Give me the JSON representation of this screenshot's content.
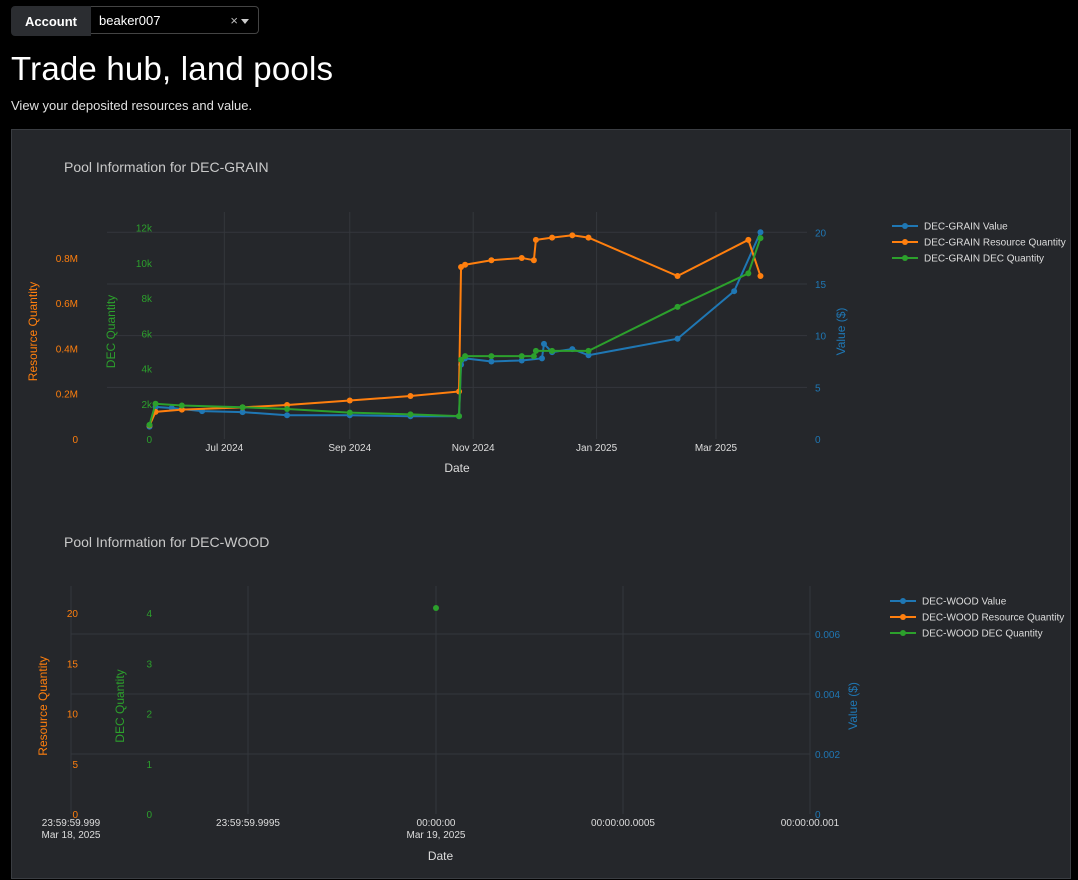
{
  "account": {
    "label": "Account",
    "value": "beaker007",
    "clear": "×"
  },
  "page": {
    "title": "Trade hub, land pools",
    "subtitle": "View your deposited resources and value."
  },
  "colors": {
    "value": "#1f77b4",
    "resource": "#ff7f0e",
    "dec": "#2ca02c"
  },
  "chart_data": [
    {
      "type": "line",
      "title": "Pool Information for DEC-GRAIN",
      "xlabel": "Date",
      "x_ticks": [
        "Jul 2024",
        "Sep 2024",
        "Nov 2024",
        "Jan 2025",
        "Mar 2025"
      ],
      "y_resource": {
        "label": "Resource Quantity",
        "ticks": [
          "0",
          "0.2M",
          "0.4M",
          "0.6M",
          "0.8M"
        ],
        "range": [
          0,
          950000
        ]
      },
      "y_dec": {
        "label": "DEC Quantity",
        "ticks": [
          "0",
          "2k",
          "4k",
          "6k",
          "8k",
          "10k",
          "12k"
        ],
        "range": [
          0,
          12200
        ]
      },
      "y_value": {
        "label": "Value ($)",
        "ticks": [
          "0",
          "5",
          "10",
          "15",
          "20"
        ],
        "range": [
          0,
          20.8
        ]
      },
      "legend_position": "right",
      "series": [
        {
          "name": "DEC-GRAIN Value",
          "axis": "value",
          "x": [
            "2024-05-25",
            "2024-05-28",
            "2024-06-05",
            "2024-06-20",
            "2024-07-10",
            "2024-08-01",
            "2024-09-01",
            "2024-10-01",
            "2024-10-25",
            "2024-10-26",
            "2024-10-28",
            "2024-11-10",
            "2024-11-25",
            "2024-12-05",
            "2024-12-06",
            "2024-12-10",
            "2024-12-20",
            "2024-12-28",
            "2025-02-10",
            "2025-03-10",
            "2025-03-23"
          ],
          "values": [
            1.2,
            3.1,
            3.0,
            2.7,
            2.6,
            2.3,
            2.3,
            2.2,
            2.2,
            7.2,
            7.8,
            7.5,
            7.6,
            7.8,
            9.2,
            8.4,
            8.7,
            8.1,
            9.7,
            14.3,
            20.0
          ]
        },
        {
          "name": "DEC-GRAIN Resource Quantity",
          "axis": "resource",
          "x": [
            "2024-05-25",
            "2024-05-28",
            "2024-06-10",
            "2024-07-10",
            "2024-08-01",
            "2024-09-01",
            "2024-10-01",
            "2024-10-25",
            "2024-10-26",
            "2024-10-28",
            "2024-11-10",
            "2024-11-25",
            "2024-12-01",
            "2024-12-02",
            "2024-12-10",
            "2024-12-20",
            "2024-12-28",
            "2025-02-10",
            "2025-03-17",
            "2025-03-23"
          ],
          "values": [
            60000,
            120000,
            130000,
            140000,
            150000,
            170000,
            190000,
            210000,
            760000,
            770000,
            790000,
            800000,
            790000,
            880000,
            890000,
            900000,
            890000,
            720000,
            880000,
            720000
          ]
        },
        {
          "name": "DEC-GRAIN DEC Quantity",
          "axis": "dec",
          "x": [
            "2024-05-25",
            "2024-05-28",
            "2024-06-10",
            "2024-07-10",
            "2024-08-01",
            "2024-09-01",
            "2024-10-01",
            "2024-10-25",
            "2024-10-26",
            "2024-10-28",
            "2024-11-10",
            "2024-11-25",
            "2024-12-01",
            "2024-12-02",
            "2024-12-10",
            "2024-12-28",
            "2025-02-10",
            "2025-03-17",
            "2025-03-23"
          ],
          "values": [
            800,
            2000,
            1900,
            1800,
            1700,
            1500,
            1400,
            1300,
            4500,
            4700,
            4700,
            4700,
            4700,
            5000,
            5000,
            5000,
            7500,
            9400,
            11400
          ]
        }
      ]
    },
    {
      "type": "scatter",
      "title": "Pool Information for DEC-WOOD",
      "xlabel": "Date",
      "x_ticks": [
        [
          "23:59:59.999",
          "Mar 18, 2025"
        ],
        [
          "23:59:59.9995",
          ""
        ],
        [
          "00:00:00",
          "Mar 19, 2025"
        ],
        [
          "00:00:00.0005",
          ""
        ],
        [
          "00:00:00.001",
          ""
        ]
      ],
      "y_resource": {
        "label": "Resource Quantity",
        "ticks": [
          "0",
          "5",
          "10",
          "15",
          "20"
        ],
        "range": [
          0,
          21.5
        ]
      },
      "y_dec": {
        "label": "DEC Quantity",
        "ticks": [
          "0",
          "1",
          "2",
          "3",
          "4"
        ],
        "range": [
          0,
          4.3
        ]
      },
      "y_value": {
        "label": "Value ($)",
        "ticks": [
          "0",
          "0.002",
          "0.004",
          "0.006"
        ],
        "range": [
          0,
          0.0072
        ]
      },
      "legend_position": "right",
      "series": [
        {
          "name": "DEC-WOOD Value",
          "axis": "value",
          "x": [],
          "values": []
        },
        {
          "name": "DEC-WOOD Resource Quantity",
          "axis": "resource",
          "x": [],
          "values": []
        },
        {
          "name": "DEC-WOOD DEC Quantity",
          "axis": "dec",
          "x": [
            "00:00:00"
          ],
          "values": [
            4.1
          ]
        }
      ]
    }
  ]
}
